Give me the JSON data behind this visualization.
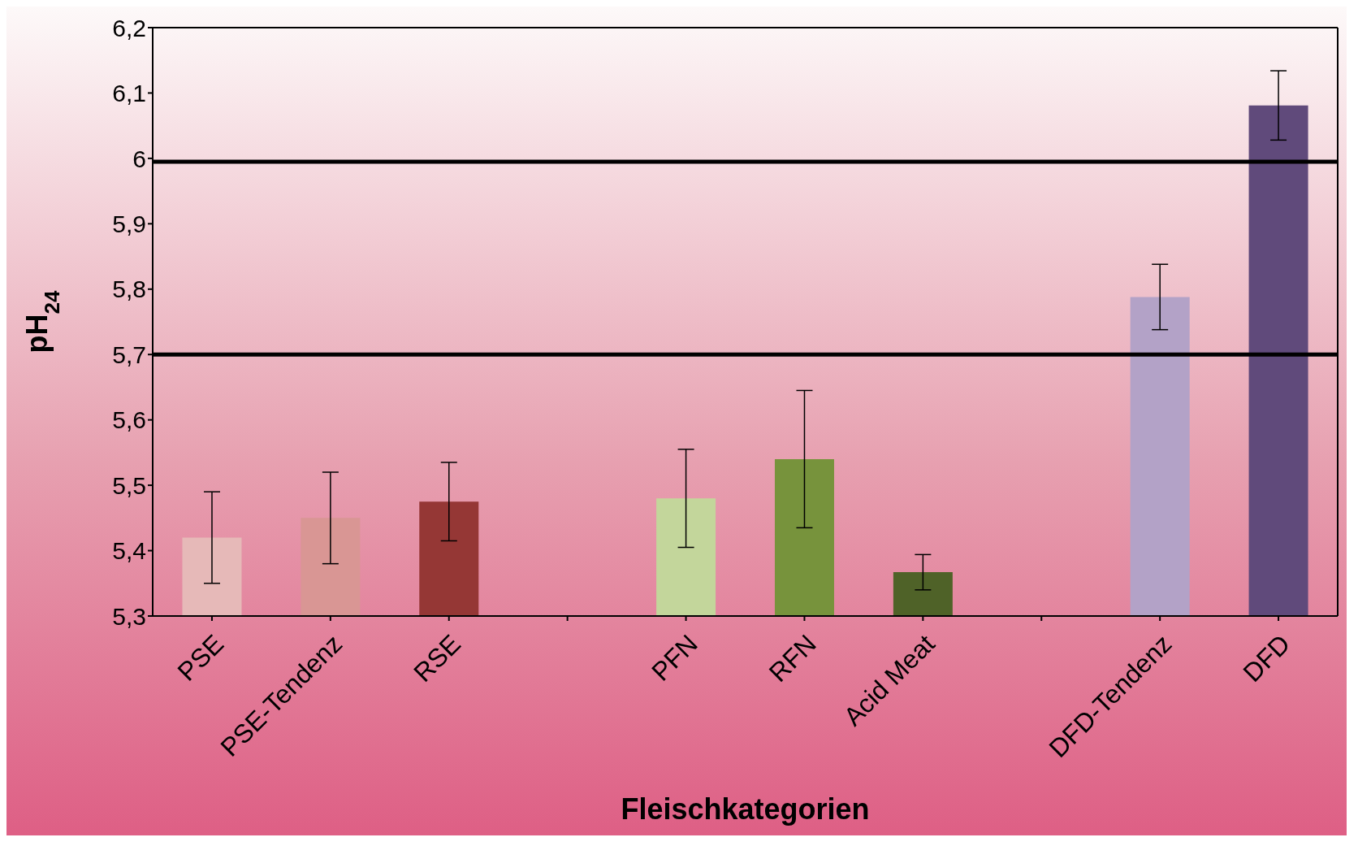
{
  "chart_data": {
    "type": "bar",
    "xlabel": "Fleischkategorien",
    "ylabel": "pH$_{24}$",
    "categories": [
      "PSE",
      "PSE-Tendenz",
      "RSE",
      null,
      "PFN",
      "RFN",
      "Acid Meat",
      null,
      "DFD-Tendenz",
      "DFD"
    ],
    "values": [
      5.42,
      5.45,
      5.475,
      null,
      5.48,
      5.54,
      5.367,
      null,
      5.788,
      6.081
    ],
    "errors": [
      0.07,
      0.07,
      0.06,
      null,
      0.075,
      0.105,
      0.027,
      null,
      0.05,
      0.053
    ],
    "colors": [
      "#e6b9b8",
      "#d99694",
      "#953735",
      null,
      "#c3d69b",
      "#77933c",
      "#4f6228",
      null,
      "#b3a2c7",
      "#604a7b"
    ],
    "ylim": [
      5.3,
      6.2
    ],
    "yticks": [
      {
        "value": 5.3,
        "label": "5,3"
      },
      {
        "value": 5.4,
        "label": "5,4"
      },
      {
        "value": 5.5,
        "label": "5,5"
      },
      {
        "value": 5.6,
        "label": "5,6"
      },
      {
        "value": 5.7,
        "label": "5,7"
      },
      {
        "value": 5.8,
        "label": "5,8"
      },
      {
        "value": 5.9,
        "label": "5,9"
      },
      {
        "value": 6,
        "label": "6"
      },
      {
        "value": 6.1,
        "label": "6,1"
      },
      {
        "value": 6.2,
        "label": "6,2"
      }
    ],
    "ref_lines": [
      {
        "axis": "y",
        "value": 5.995,
        "color": "#000000"
      },
      {
        "axis": "y",
        "value": 5.7,
        "color": "#000000"
      }
    ],
    "tick_labels": "xy"
  }
}
